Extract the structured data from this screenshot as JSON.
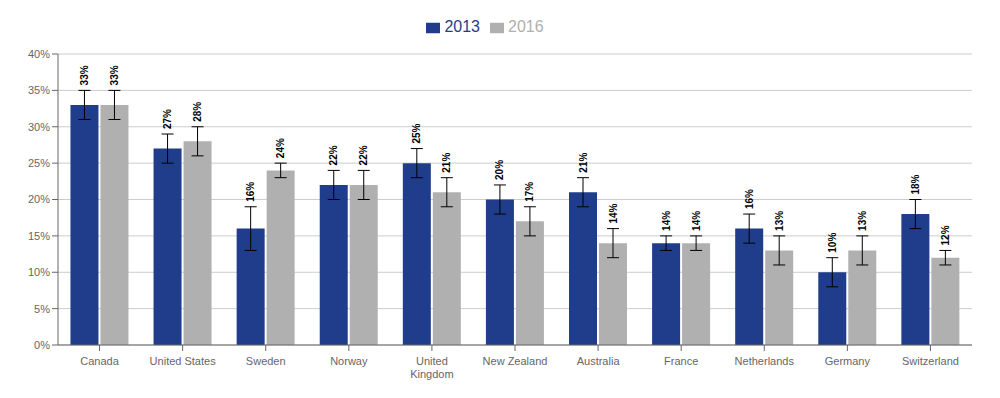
{
  "chart_data": {
    "type": "bar",
    "categories": [
      "Canada",
      "United States",
      "Sweden",
      "Norway",
      "United\nKingdom",
      "New Zealand",
      "Australia",
      "France",
      "Netherlands",
      "Germany",
      "Switzerland"
    ],
    "series": [
      {
        "name": "2013",
        "color": "#1F3D8A",
        "values": [
          33,
          27,
          16,
          22,
          25,
          20,
          21,
          14,
          16,
          10,
          18
        ],
        "errors": [
          2,
          2,
          3,
          2,
          2,
          2,
          2,
          1,
          2,
          2,
          2
        ],
        "value_labels": [
          "33%",
          "27%",
          "16%",
          "22%",
          "25%",
          "20%",
          "21%",
          "14%",
          "16%",
          "10%",
          "18%"
        ]
      },
      {
        "name": "2016",
        "color": "#B0B0B0",
        "values": [
          33,
          28,
          24,
          22,
          21,
          17,
          14,
          14,
          13,
          13,
          12
        ],
        "errors": [
          2,
          2,
          1,
          2,
          2,
          2,
          2,
          1,
          2,
          2,
          1
        ],
        "value_labels": [
          "33%",
          "28%",
          "24%",
          "22%",
          "21%",
          "17%",
          "14%",
          "14%",
          "13%",
          "13%",
          "12%"
        ]
      }
    ],
    "ylim": [
      0,
      40
    ],
    "yticks": [
      {
        "value": 0,
        "label": "0%"
      },
      {
        "value": 5,
        "label": "5%"
      },
      {
        "value": 10,
        "label": "10%"
      },
      {
        "value": 15,
        "label": "15%"
      },
      {
        "value": 20,
        "label": "20%"
      },
      {
        "value": 25,
        "label": "25%"
      },
      {
        "value": 30,
        "label": "30%"
      },
      {
        "value": 35,
        "label": "35%"
      },
      {
        "value": 40,
        "label": "40%"
      }
    ],
    "grid": true,
    "legend": "top",
    "data_labels": true
  }
}
